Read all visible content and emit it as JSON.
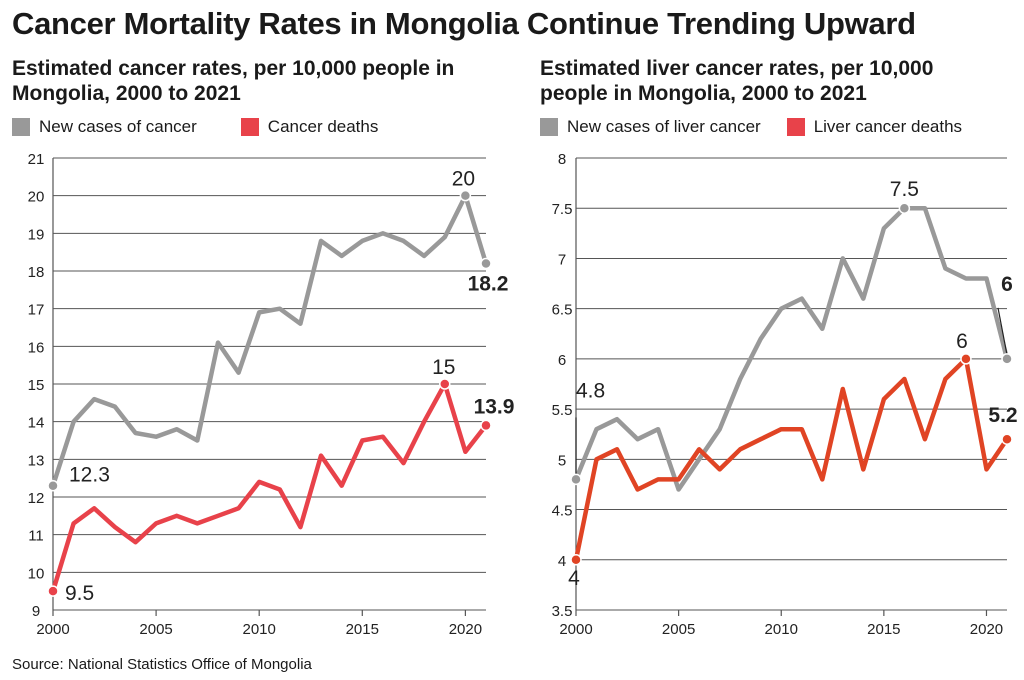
{
  "title": "Cancer Mortality Rates in Mongolia Continue Trending Upward",
  "source": "Source: National Statistics Office of Mongolia",
  "colors": {
    "gray": "#999999",
    "red": "#e8424a",
    "orange_red": "#e04424",
    "axis": "#555555",
    "grid": "#555555"
  },
  "chart_data": [
    {
      "type": "line",
      "title": "Estimated cancer rates, per 10,000 people in Mongolia, 2000 to 2021",
      "xlabel": "",
      "ylabel": "",
      "xlim": [
        2000,
        2021
      ],
      "ylim": [
        9,
        21
      ],
      "yticks": [
        "9",
        "10",
        "11",
        "12",
        "13",
        "14",
        "15",
        "16",
        "17",
        "18",
        "19",
        "20",
        "21"
      ],
      "xticks": [
        "2000",
        "2005",
        "2010",
        "2015",
        "2020"
      ],
      "grid": true,
      "legend_position": "top-left",
      "x": [
        2000,
        2001,
        2002,
        2003,
        2004,
        2005,
        2006,
        2007,
        2008,
        2009,
        2010,
        2011,
        2012,
        2013,
        2014,
        2015,
        2016,
        2017,
        2018,
        2019,
        2020,
        2021
      ],
      "series": [
        {
          "name": "New cases of cancer",
          "color": "#999999",
          "values": [
            12.3,
            14.0,
            14.6,
            14.4,
            13.7,
            13.6,
            13.8,
            13.5,
            16.1,
            15.3,
            16.9,
            17.0,
            16.6,
            18.8,
            18.4,
            18.8,
            19.0,
            18.8,
            18.4,
            18.9,
            20.0,
            18.2
          ]
        },
        {
          "name": "Cancer deaths",
          "color": "#e8424a",
          "values": [
            9.5,
            11.3,
            11.7,
            11.2,
            10.8,
            11.3,
            11.5,
            11.3,
            11.5,
            11.7,
            12.4,
            12.2,
            11.2,
            13.1,
            12.3,
            13.5,
            13.6,
            12.9,
            14.0,
            15.0,
            13.2,
            13.9
          ]
        }
      ],
      "annotations": [
        {
          "text": "12.3",
          "series": 0,
          "x": 2000,
          "bold": false
        },
        {
          "text": "20",
          "series": 0,
          "x": 2020,
          "bold": false
        },
        {
          "text": "18.2",
          "series": 0,
          "x": 2021,
          "bold": true
        },
        {
          "text": "9.5",
          "series": 1,
          "x": 2000,
          "bold": false
        },
        {
          "text": "15",
          "series": 1,
          "x": 2019,
          "bold": false
        },
        {
          "text": "13.9",
          "series": 1,
          "x": 2021,
          "bold": true
        }
      ]
    },
    {
      "type": "line",
      "title": "Estimated liver cancer rates, per 10,000 people in Mongolia, 2000 to 2021",
      "xlabel": "",
      "ylabel": "",
      "xlim": [
        2000,
        2021
      ],
      "ylim": [
        3.5,
        8
      ],
      "yticks": [
        "3.5",
        "4",
        "4.5",
        "5",
        "5.5",
        "6",
        "6.5",
        "7",
        "7.5",
        "8"
      ],
      "xticks": [
        "2000",
        "2005",
        "2010",
        "2015",
        "2020"
      ],
      "grid": true,
      "legend_position": "top-left",
      "x": [
        2000,
        2001,
        2002,
        2003,
        2004,
        2005,
        2006,
        2007,
        2008,
        2009,
        2010,
        2011,
        2012,
        2013,
        2014,
        2015,
        2016,
        2017,
        2018,
        2019,
        2020,
        2021
      ],
      "series": [
        {
          "name": "New cases of liver cancer",
          "color": "#999999",
          "values": [
            4.8,
            5.3,
            5.4,
            5.2,
            5.3,
            4.7,
            5.0,
            5.3,
            5.8,
            6.2,
            6.5,
            6.6,
            6.3,
            7.0,
            6.6,
            7.3,
            7.5,
            7.5,
            6.9,
            6.8,
            6.8,
            6.0
          ]
        },
        {
          "name": "Liver cancer deaths",
          "color": "#e04424",
          "values": [
            4.0,
            5.0,
            5.1,
            4.7,
            4.8,
            4.8,
            5.1,
            4.9,
            5.1,
            5.2,
            5.3,
            5.3,
            4.8,
            5.7,
            4.9,
            5.6,
            5.8,
            5.2,
            5.8,
            6.0,
            4.9,
            5.2
          ]
        }
      ],
      "annotations": [
        {
          "text": "4.8",
          "series": 0,
          "x": 2000,
          "bold": false
        },
        {
          "text": "7.5",
          "series": 0,
          "x": 2016,
          "bold": false
        },
        {
          "text": "6",
          "series": 0,
          "x": 2021,
          "bold": true
        },
        {
          "text": "4",
          "series": 1,
          "x": 2000,
          "bold": false
        },
        {
          "text": "6",
          "series": 1,
          "x": 2019,
          "bold": false
        },
        {
          "text": "5.2",
          "series": 1,
          "x": 2021,
          "bold": true
        }
      ]
    }
  ]
}
